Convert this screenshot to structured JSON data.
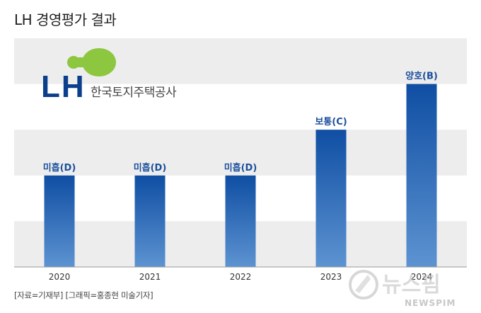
{
  "page": {
    "title": "LH 경영평가 결과",
    "source": "[자료=기재부] [그래픽=홍종현 미술기자]"
  },
  "logo": {
    "mark": "LH",
    "name": "한국토지주택공사",
    "colors": {
      "mark": "#0b3f8c",
      "leaf": "#8dc63f"
    }
  },
  "watermark": {
    "korean": "뉴스핌",
    "english": "NEWSPIM"
  },
  "colors": {
    "band": "#ededed",
    "bar_top": "#0f4ea3",
    "bar_bottom": "#5d93d1",
    "label": "#1b4f9c",
    "axis": "#999999"
  },
  "chart_data": {
    "type": "bar",
    "categories": [
      "2020",
      "2021",
      "2022",
      "2023",
      "2024"
    ],
    "values": [
      2,
      2,
      2,
      3,
      4
    ],
    "data_labels": [
      "미흡(D)",
      "미흡(D)",
      "미흡(D)",
      "보통(C)",
      "양호(B)"
    ],
    "ylim": [
      0,
      5
    ],
    "grid": "alternating-bands",
    "legend": "none"
  }
}
